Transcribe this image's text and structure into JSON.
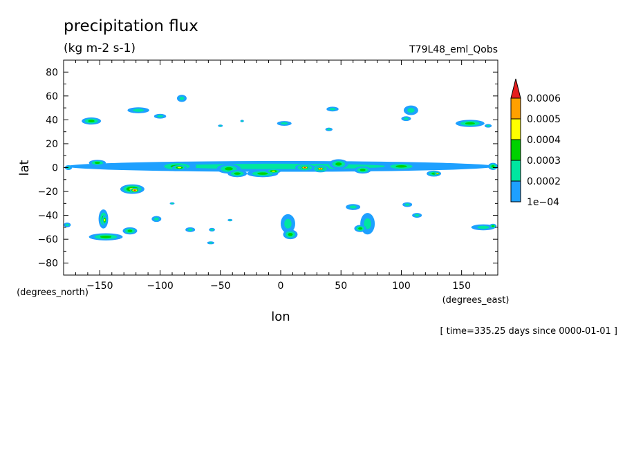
{
  "chart_data": {
    "type": "contour-map",
    "title": "precipitation flux",
    "units": "(kg m-2 s-1)",
    "dataset_label": "T79L48_eml_Qobs",
    "xlabel": "lon",
    "ylabel": "lat",
    "x_units_label": "(degrees_east)",
    "y_units_label": "(degrees_north)",
    "time_label": "[ time=335.25 days since 0000-01-01 ]",
    "xlim": [
      -180,
      180
    ],
    "ylim": [
      -90,
      90
    ],
    "x_ticks": [
      -150,
      -100,
      -50,
      0,
      50,
      100,
      150
    ],
    "x_tick_labels": [
      "−150",
      "−100",
      "−50",
      "0",
      "50",
      "100",
      "150"
    ],
    "y_ticks": [
      80,
      60,
      40,
      20,
      0,
      -20,
      -40,
      -60,
      -80
    ],
    "y_tick_labels": [
      "80",
      "60",
      "40",
      "20",
      "0",
      "−20",
      "−40",
      "−60",
      "−80"
    ],
    "colorbar": {
      "levels": [
        "1e−04",
        "0.0002",
        "0.0003",
        "0.0004",
        "0.0005",
        "0.0006"
      ],
      "colors": [
        "#1ea0ff",
        "#00e6a0",
        "#00d200",
        "#ffff00",
        "#ffa000",
        "#e61e1e"
      ],
      "extend": "max"
    },
    "features": [
      {
        "lon": -157,
        "lat": 39,
        "rx": 8,
        "ry": 3,
        "level": 2
      },
      {
        "lon": -118,
        "lat": 48,
        "rx": 9,
        "ry": 2.5,
        "level": 1
      },
      {
        "lon": -100,
        "lat": 43,
        "rx": 5,
        "ry": 2,
        "level": 1
      },
      {
        "lon": -82,
        "lat": 58,
        "rx": 4,
        "ry": 3,
        "level": 1
      },
      {
        "lon": -50,
        "lat": 35,
        "rx": 2,
        "ry": 1,
        "level": 1
      },
      {
        "lon": -32,
        "lat": 39,
        "rx": 1.5,
        "ry": 1,
        "level": 1
      },
      {
        "lon": 3,
        "lat": 37,
        "rx": 6,
        "ry": 2,
        "level": 1
      },
      {
        "lon": 43,
        "lat": 49,
        "rx": 5,
        "ry": 2,
        "level": 1
      },
      {
        "lon": 40,
        "lat": 32,
        "rx": 3,
        "ry": 1.5,
        "level": 1
      },
      {
        "lon": 108,
        "lat": 48,
        "rx": 6,
        "ry": 4,
        "level": 1
      },
      {
        "lon": 104,
        "lat": 41,
        "rx": 4,
        "ry": 2,
        "level": 1
      },
      {
        "lon": 157,
        "lat": 37,
        "rx": 12,
        "ry": 3,
        "level": 2
      },
      {
        "lon": 172,
        "lat": 35,
        "rx": 3,
        "ry": 1.5,
        "level": 1
      },
      {
        "lon": 0,
        "lat": 1,
        "rx": 178,
        "ry": 4.5,
        "level": 1
      },
      {
        "lon": -152,
        "lat": 4,
        "rx": 7,
        "ry": 2.5,
        "level": 2
      },
      {
        "lon": -86,
        "lat": 1,
        "rx": 16,
        "ry": 4,
        "level": 2
      },
      {
        "lon": -84,
        "lat": 0,
        "rx": 6,
        "ry": 2,
        "level": 3
      },
      {
        "lon": -43,
        "lat": -1,
        "rx": 10,
        "ry": 4,
        "level": 2
      },
      {
        "lon": -36,
        "lat": -5,
        "rx": 8,
        "ry": 3,
        "level": 2
      },
      {
        "lon": -15,
        "lat": -5,
        "rx": 13,
        "ry": 3,
        "level": 2
      },
      {
        "lon": -6,
        "lat": -3,
        "rx": 6,
        "ry": 2,
        "level": 3
      },
      {
        "lon": 20,
        "lat": 0,
        "rx": 8,
        "ry": 3,
        "level": 3
      },
      {
        "lon": 20,
        "lat": 0,
        "rx": 4,
        "ry": 1.5,
        "level": 5
      },
      {
        "lon": 33,
        "lat": -1,
        "rx": 7,
        "ry": 3,
        "level": 3
      },
      {
        "lon": 33,
        "lat": -1,
        "rx": 3.5,
        "ry": 1.5,
        "level": 5
      },
      {
        "lon": 48,
        "lat": 3,
        "rx": 8,
        "ry": 4,
        "level": 2
      },
      {
        "lon": 68,
        "lat": -2,
        "rx": 7,
        "ry": 3,
        "level": 2
      },
      {
        "lon": 100,
        "lat": 1,
        "rx": 14,
        "ry": 3,
        "level": 2
      },
      {
        "lon": 127,
        "lat": -5,
        "rx": 6,
        "ry": 2.5,
        "level": 2
      },
      {
        "lon": 130,
        "lat": -5,
        "rx": 2.5,
        "ry": 1.2,
        "level": 4
      },
      {
        "lon": 176,
        "lat": 1,
        "rx": 4,
        "ry": 3,
        "level": 2
      },
      {
        "lon": -123,
        "lat": -18,
        "rx": 10,
        "ry": 4,
        "level": 3
      },
      {
        "lon": -121,
        "lat": -19,
        "rx": 4,
        "ry": 2,
        "level": 5
      },
      {
        "lon": -147,
        "lat": -43,
        "rx": 4,
        "ry": 8,
        "level": 2
      },
      {
        "lon": -146,
        "lat": -44,
        "rx": 2,
        "ry": 4,
        "level": 3
      },
      {
        "lon": -145,
        "lat": -58,
        "rx": 14,
        "ry": 3,
        "level": 2
      },
      {
        "lon": -125,
        "lat": -53,
        "rx": 6,
        "ry": 3,
        "level": 2
      },
      {
        "lon": -103,
        "lat": -43,
        "rx": 4,
        "ry": 2.5,
        "level": 1
      },
      {
        "lon": -90,
        "lat": -30,
        "rx": 2,
        "ry": 1,
        "level": 1
      },
      {
        "lon": -75,
        "lat": -52,
        "rx": 4,
        "ry": 2,
        "level": 1
      },
      {
        "lon": -57,
        "lat": -52,
        "rx": 2.5,
        "ry": 1.5,
        "level": 1
      },
      {
        "lon": -42,
        "lat": -44,
        "rx": 2,
        "ry": 1,
        "level": 1
      },
      {
        "lon": -58,
        "lat": -63,
        "rx": 3,
        "ry": 1.2,
        "level": 1
      },
      {
        "lon": 6,
        "lat": -47,
        "rx": 6,
        "ry": 8,
        "level": 1
      },
      {
        "lon": 8,
        "lat": -56,
        "rx": 6,
        "ry": 4,
        "level": 2
      },
      {
        "lon": 60,
        "lat": -33,
        "rx": 6,
        "ry": 2.5,
        "level": 1
      },
      {
        "lon": 72,
        "lat": -47,
        "rx": 6,
        "ry": 9,
        "level": 1
      },
      {
        "lon": 66,
        "lat": -51,
        "rx": 5,
        "ry": 3,
        "level": 2
      },
      {
        "lon": 105,
        "lat": -31,
        "rx": 4,
        "ry": 2,
        "level": 1
      },
      {
        "lon": 113,
        "lat": -40,
        "rx": 4,
        "ry": 2,
        "level": 1
      },
      {
        "lon": 168,
        "lat": -50,
        "rx": 10,
        "ry": 2.5,
        "level": 1
      },
      {
        "lon": 176,
        "lat": -49,
        "rx": 3,
        "ry": 2,
        "level": 2
      },
      {
        "lon": -177,
        "lat": -48,
        "rx": 3,
        "ry": 2,
        "level": 1
      },
      {
        "lon": -176,
        "lat": 0,
        "rx": 3,
        "ry": 2,
        "level": 1
      }
    ]
  }
}
